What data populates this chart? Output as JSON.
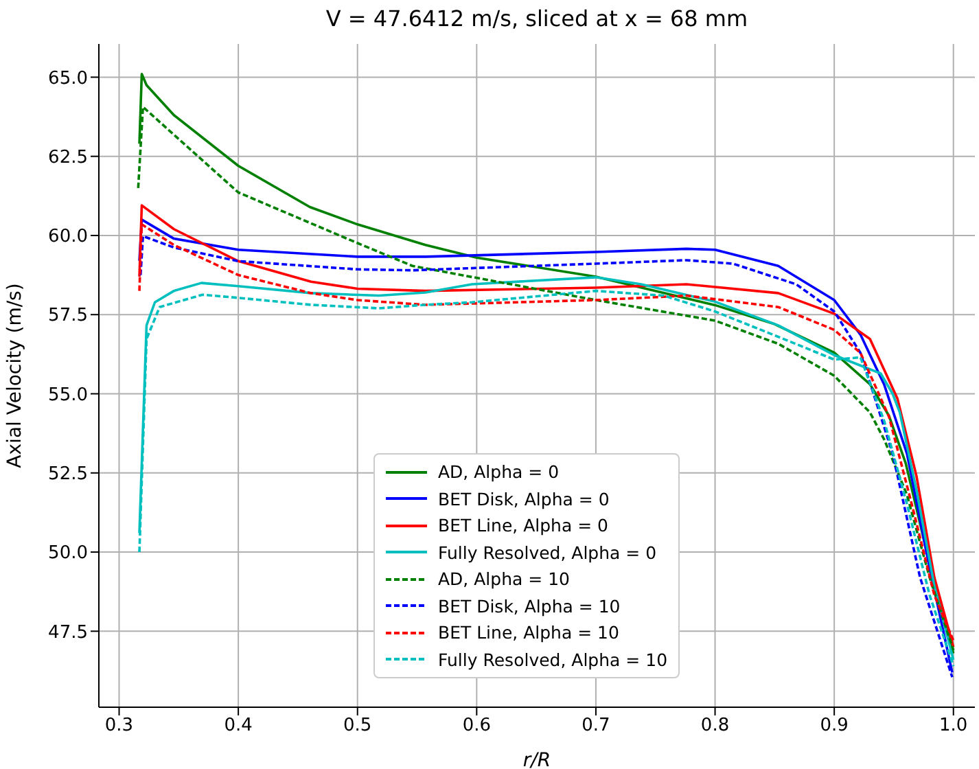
{
  "chart_data": {
    "type": "line",
    "title": "V = 47.6412 m/s, sliced at x = 68 mm",
    "xlabel": "r/R",
    "ylabel": "Axial Velocity (m/s)",
    "xlim": [
      0.283,
      1.018
    ],
    "ylim": [
      45.1,
      66.05
    ],
    "xticks": [
      0.3,
      0.4,
      0.5,
      0.6,
      0.7,
      0.8,
      0.9,
      {
        "value": 1.0,
        "label": "1.0"
      }
    ],
    "yticks": [
      47.5,
      {
        "value": 50,
        "label": "50.0"
      },
      52.5,
      {
        "value": 55,
        "label": "55.0"
      },
      57.5,
      {
        "value": 60,
        "label": "60.0"
      },
      62.5,
      {
        "value": 65,
        "label": "65.0"
      }
    ],
    "grid": true,
    "legend": "bottom",
    "marker": "none",
    "series": [
      {
        "name": "AD, Alpha = 0",
        "color": "#008000",
        "line_style": "solid",
        "x": [
          0.317,
          0.319,
          0.323,
          0.346,
          0.4,
          0.46,
          0.5,
          0.557,
          0.6,
          0.7,
          0.8,
          0.85,
          0.9,
          0.93,
          0.946,
          0.96,
          0.972,
          0.985,
          1.0
        ],
        "values": [
          62.9,
          65.1,
          64.75,
          63.8,
          62.2,
          60.9,
          60.35,
          59.7,
          59.3,
          58.7,
          57.8,
          57.2,
          56.3,
          55.3,
          54.3,
          52.8,
          50.9,
          48.8,
          46.8
        ]
      },
      {
        "name": "BET Disk, Alpha = 0",
        "color": "#0000ff",
        "line_style": "solid",
        "x": [
          0.317,
          0.319,
          0.346,
          0.4,
          0.5,
          0.557,
          0.7,
          0.776,
          0.8,
          0.853,
          0.9,
          0.922,
          0.942,
          0.961,
          0.98,
          0.999
        ],
        "values": [
          59.2,
          60.5,
          59.9,
          59.55,
          59.33,
          59.33,
          59.48,
          59.58,
          59.55,
          59.04,
          57.96,
          56.87,
          55.28,
          53.11,
          49.5,
          46.2
        ]
      },
      {
        "name": "BET Line, Alpha = 0",
        "color": "#ff0000",
        "line_style": "solid",
        "x": [
          0.317,
          0.319,
          0.346,
          0.4,
          0.461,
          0.5,
          0.557,
          0.7,
          0.776,
          0.853,
          0.9,
          0.93,
          0.953,
          0.969,
          0.984,
          1.0
        ],
        "values": [
          58.7,
          60.95,
          60.2,
          59.19,
          58.54,
          58.32,
          58.25,
          58.35,
          58.46,
          58.18,
          57.53,
          56.73,
          54.85,
          52.4,
          49.2,
          47.0
        ]
      },
      {
        "name": "Fully Resolved, Alpha = 0",
        "color": "#00bfbf",
        "line_style": "solid",
        "x": [
          0.317,
          0.323,
          0.33,
          0.346,
          0.369,
          0.4,
          0.461,
          0.518,
          0.557,
          0.596,
          0.7,
          0.738,
          0.8,
          0.853,
          0.9,
          0.939,
          0.949,
          0.955,
          0.969,
          0.984,
          1.0
        ],
        "values": [
          50.6,
          57.16,
          57.89,
          58.25,
          58.5,
          58.4,
          58.18,
          58.1,
          58.2,
          58.46,
          58.68,
          58.46,
          57.91,
          57.16,
          56.22,
          55.64,
          55.0,
          54.41,
          51.96,
          48.93,
          46.6
        ]
      },
      {
        "name": "AD, Alpha = 10",
        "color": "#008000",
        "line_style": "dashed",
        "x": [
          0.316,
          0.32,
          0.4,
          0.5,
          0.546,
          0.7,
          0.8,
          0.853,
          0.9,
          0.93,
          0.942,
          0.961,
          0.98,
          1.0
        ],
        "values": [
          61.5,
          64.06,
          61.36,
          59.76,
          59.04,
          57.96,
          57.31,
          56.58,
          55.57,
          54.41,
          53.55,
          51.81,
          49.2,
          46.9
        ]
      },
      {
        "name": "BET Disk, Alpha = 10",
        "color": "#0000ff",
        "line_style": "dashed",
        "x": [
          0.318,
          0.32,
          0.346,
          0.4,
          0.5,
          0.546,
          0.7,
          0.776,
          0.815,
          0.868,
          0.9,
          0.922,
          0.949,
          0.972,
          0.999
        ],
        "values": [
          58.75,
          59.98,
          59.62,
          59.19,
          58.93,
          58.9,
          59.11,
          59.22,
          59.11,
          58.46,
          57.6,
          56.29,
          53.11,
          49.2,
          46.05
        ]
      },
      {
        "name": "BET Line, Alpha = 10",
        "color": "#ff0000",
        "line_style": "dashed",
        "x": [
          0.317,
          0.319,
          0.346,
          0.4,
          0.461,
          0.5,
          0.557,
          0.7,
          0.776,
          0.853,
          0.9,
          0.922,
          0.946,
          0.965,
          0.984,
          1.0
        ],
        "values": [
          58.25,
          60.35,
          59.7,
          58.75,
          58.18,
          57.96,
          57.81,
          57.96,
          58.1,
          57.74,
          57.02,
          56.29,
          54.27,
          51.52,
          48.64,
          47.2
        ]
      },
      {
        "name": "Fully Resolved, Alpha = 10",
        "color": "#00bfbf",
        "line_style": "dashed",
        "x": [
          0.317,
          0.323,
          0.334,
          0.37,
          0.4,
          0.461,
          0.518,
          0.557,
          0.596,
          0.7,
          0.757,
          0.8,
          0.853,
          0.9,
          0.922,
          0.942,
          0.961,
          0.98,
          1.0
        ],
        "values": [
          50.0,
          56.73,
          57.74,
          58.13,
          58.03,
          57.81,
          57.7,
          57.81,
          57.89,
          58.25,
          58.1,
          57.6,
          56.8,
          56.08,
          56.15,
          54.13,
          51.52,
          48.64,
          46.4
        ]
      }
    ]
  }
}
